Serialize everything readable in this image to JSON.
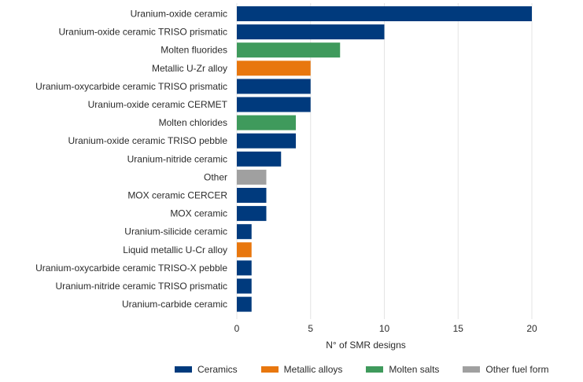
{
  "chart_data": {
    "type": "bar",
    "orientation": "horizontal",
    "title": "",
    "xlabel": "N° of SMR designs",
    "ylabel": "",
    "xlim": [
      0,
      20
    ],
    "xticks": [
      0,
      5,
      10,
      15,
      20
    ],
    "grid": "vertical",
    "legend_position": "bottom",
    "categories": [
      "Uranium-oxide ceramic",
      "Uranium-oxide ceramic TRISO prismatic",
      "Molten fluorides",
      "Metallic U-Zr alloy",
      "Uranium-oxycarbide ceramic TRISO prismatic",
      "Uranium-oxide ceramic CERMET",
      "Molten chlorides",
      "Uranium-oxide ceramic TRISO pebble",
      "Uranium-nitride ceramic",
      "Other",
      "MOX ceramic CERCER",
      "MOX ceramic",
      "Uranium-silicide ceramic",
      "Liquid metallic U-Cr alloy",
      "Uranium-oxycarbide ceramic TRISO-X pebble",
      "Uranium-nitride ceramic TRISO prismatic",
      "Uranium-carbide ceramic"
    ],
    "values": [
      20,
      10,
      7,
      5,
      5,
      5,
      4,
      4,
      3,
      2,
      2,
      2,
      1,
      1,
      1,
      1,
      1
    ],
    "groups": [
      "Ceramics",
      "Ceramics",
      "Molten salts",
      "Metallic alloys",
      "Ceramics",
      "Ceramics",
      "Molten salts",
      "Ceramics",
      "Ceramics",
      "Other fuel form",
      "Ceramics",
      "Ceramics",
      "Ceramics",
      "Metallic alloys",
      "Ceramics",
      "Ceramics",
      "Ceramics"
    ],
    "legend": [
      {
        "name": "Ceramics",
        "color": "#003a7d"
      },
      {
        "name": "Metallic alloys",
        "color": "#e8770e"
      },
      {
        "name": "Molten salts",
        "color": "#3f9a5c"
      },
      {
        "name": "Other fuel form",
        "color": "#a0a0a0"
      }
    ]
  },
  "colors": {
    "gridline": "#e4e4e4",
    "text": "#2b2b2b"
  }
}
